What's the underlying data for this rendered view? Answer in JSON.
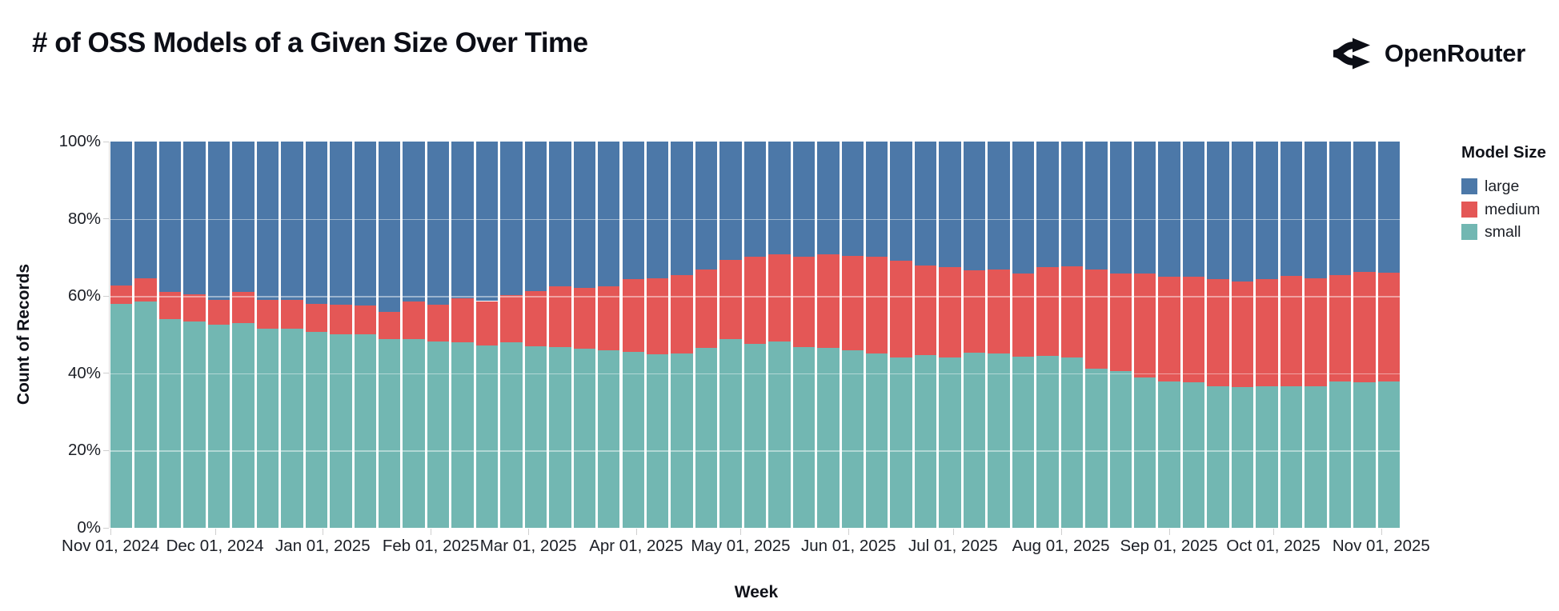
{
  "header": {
    "title": "# of OSS Models of a Given Size Over Time",
    "brand": "OpenRouter"
  },
  "chart_data": {
    "type": "bar",
    "variant": "stacked-normalized-weekly",
    "title": "# of OSS Models of a Given Size Over Time",
    "xlabel": "Week",
    "ylabel": "Count of Records",
    "legend_title": "Model Size",
    "legend_position": "right",
    "legend_order": [
      "large",
      "medium",
      "small"
    ],
    "stack_order_bottom_to_top": [
      "small",
      "medium",
      "large"
    ],
    "grid": true,
    "ylim": [
      0,
      100
    ],
    "y_ticks": [
      {
        "value": 0,
        "label": "0%"
      },
      {
        "value": 20,
        "label": "20%"
      },
      {
        "value": 40,
        "label": "40%"
      },
      {
        "value": 60,
        "label": "60%"
      },
      {
        "value": 80,
        "label": "80%"
      },
      {
        "value": 100,
        "label": "100%"
      }
    ],
    "x_month_ticks": [
      {
        "label": "Nov 01, 2024",
        "pos": 0.0
      },
      {
        "label": "Dec 01, 2024",
        "pos": 0.0809
      },
      {
        "label": "Jan 01, 2025",
        "pos": 0.1644
      },
      {
        "label": "Feb 01, 2025",
        "pos": 0.248
      },
      {
        "label": "Mar 01, 2025",
        "pos": 0.3235
      },
      {
        "label": "Apr 01, 2025",
        "pos": 0.407
      },
      {
        "label": "May 01, 2025",
        "pos": 0.4879
      },
      {
        "label": "Jun 01, 2025",
        "pos": 0.5714
      },
      {
        "label": "Jul 01, 2025",
        "pos": 0.6523
      },
      {
        "label": "Aug 01, 2025",
        "pos": 0.7358
      },
      {
        "label": "Sep 01, 2025",
        "pos": 0.8194
      },
      {
        "label": "Oct 01, 2025",
        "pos": 0.9003
      },
      {
        "label": "Nov 01, 2025",
        "pos": 0.9838
      }
    ],
    "categories": [
      "2024-11-01",
      "2024-11-08",
      "2024-11-15",
      "2024-11-22",
      "2024-11-29",
      "2024-12-06",
      "2024-12-13",
      "2024-12-20",
      "2024-12-27",
      "2025-01-03",
      "2025-01-10",
      "2025-01-17",
      "2025-01-24",
      "2025-01-31",
      "2025-02-07",
      "2025-02-14",
      "2025-02-21",
      "2025-02-28",
      "2025-03-07",
      "2025-03-14",
      "2025-03-21",
      "2025-03-28",
      "2025-04-04",
      "2025-04-11",
      "2025-04-18",
      "2025-04-25",
      "2025-05-02",
      "2025-05-09",
      "2025-05-16",
      "2025-05-23",
      "2025-05-30",
      "2025-06-06",
      "2025-06-13",
      "2025-06-20",
      "2025-06-27",
      "2025-07-04",
      "2025-07-11",
      "2025-07-18",
      "2025-07-25",
      "2025-08-01",
      "2025-08-08",
      "2025-08-15",
      "2025-08-22",
      "2025-08-29",
      "2025-09-05",
      "2025-09-12",
      "2025-09-19",
      "2025-09-26",
      "2025-10-03",
      "2025-10-10",
      "2025-10-17",
      "2025-10-24",
      "2025-10-31"
    ],
    "series": [
      {
        "name": "small",
        "color": "#72B7B2",
        "values": [
          58,
          58.5,
          54,
          53.5,
          52.5,
          53,
          51.5,
          51.5,
          50.7,
          50.2,
          50.2,
          48.8,
          48.8,
          48.3,
          48,
          47.3,
          48,
          47.1,
          46.7,
          46.3,
          46,
          45.6,
          45,
          45.2,
          46.5,
          48.8,
          47.7,
          48.3,
          46.7,
          46.5,
          46,
          45.2,
          44.2,
          44.8,
          44.2,
          45.4,
          45.2,
          44.4,
          44.6,
          44.2,
          41.3,
          40.5,
          39,
          37.8,
          37.6,
          36.7,
          36.5,
          36.7,
          36.7,
          36.7,
          37.8,
          37.6,
          37.8
        ]
      },
      {
        "name": "medium",
        "color": "#E45756",
        "values": [
          4.7,
          6.2,
          7,
          7,
          6.5,
          8,
          7.5,
          7.5,
          7.3,
          7.5,
          7.3,
          7.2,
          9.7,
          9.4,
          11.5,
          11.4,
          12.2,
          14.1,
          15.9,
          15.9,
          16.6,
          18.7,
          19.5,
          20.2,
          20.3,
          20.5,
          22.4,
          22.6,
          23.4,
          24.4,
          24.5,
          24.9,
          24.9,
          23.2,
          23.2,
          21.2,
          21.6,
          21.4,
          22.8,
          23.6,
          25.5,
          25.3,
          26.8,
          27.2,
          27.4,
          27.7,
          27.3,
          27.7,
          28.5,
          27.9,
          27.6,
          28.6,
          28.2
        ]
      },
      {
        "name": "large",
        "color": "#4C78A8",
        "values": [
          37.3,
          35.3,
          39,
          39.5,
          41,
          39,
          41,
          41,
          42,
          42.3,
          42.5,
          44,
          41.5,
          42.3,
          40.5,
          41.3,
          39.8,
          38.8,
          37.4,
          37.8,
          37.4,
          35.7,
          35.5,
          34.6,
          33.2,
          30.7,
          29.9,
          29.1,
          29.9,
          29.1,
          29.5,
          29.9,
          30.9,
          32,
          32.6,
          33.4,
          33.2,
          34.2,
          32.6,
          32.2,
          33.2,
          34.2,
          34.2,
          35,
          35,
          35.6,
          36.2,
          35.6,
          34.8,
          35.4,
          34.6,
          33.8,
          34
        ]
      }
    ],
    "colors": {
      "large": "#4C78A8",
      "medium": "#E45756",
      "small": "#72B7B2",
      "grid_overlay": "rgba(255,255,255,0.45)",
      "tick": "#cfcfcf",
      "text": "#1c1f26"
    }
  }
}
